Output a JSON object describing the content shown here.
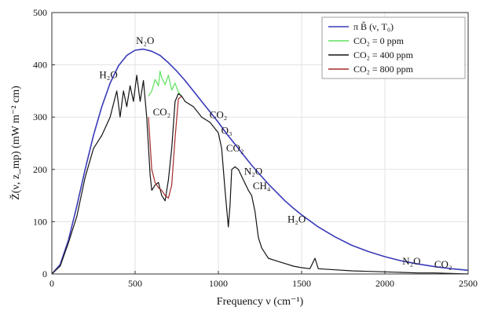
{
  "chart_data": {
    "type": "line",
    "xlabel": "Frequency ν (cm⁻¹)",
    "ylabel": "Ž(ν, z_mp) (mW m⁻² cm)",
    "xlim": [
      0,
      2500
    ],
    "ylim": [
      0,
      500
    ],
    "xticks": [
      "0",
      "500",
      "1000",
      "1500",
      "2000",
      "2500"
    ],
    "yticks": [
      "0",
      "100",
      "200",
      "300",
      "400",
      "500"
    ],
    "grid": true,
    "legend_position": "top-right",
    "legend": [
      "π B̃ (ν, T₀)",
      "CO₂ = 0 ppm",
      "CO₂ = 400 ppm",
      "CO₂ = 800 ppm"
    ],
    "colors": {
      "planck": "#3a3ab8",
      "co2_0": "#5ee05e",
      "co2_400": "#141414",
      "co2_800": "#a52a2a"
    },
    "annotations": [
      {
        "text": "N₂O",
        "x": 560,
        "y": 440
      },
      {
        "text": "H₂O",
        "x": 340,
        "y": 375
      },
      {
        "text": "CO₂",
        "x": 660,
        "y": 303
      },
      {
        "text": "CO₂",
        "x": 1000,
        "y": 298
      },
      {
        "text": "O₃",
        "x": 1050,
        "y": 268
      },
      {
        "text": "CO₂",
        "x": 1100,
        "y": 234
      },
      {
        "text": "N₂O",
        "x": 1210,
        "y": 190
      },
      {
        "text": "CH₄",
        "x": 1260,
        "y": 162
      },
      {
        "text": "H₂O",
        "x": 1470,
        "y": 98
      },
      {
        "text": "N₂O",
        "x": 2160,
        "y": 18
      },
      {
        "text": "CO₂",
        "x": 2350,
        "y": 12
      }
    ],
    "series": [
      {
        "name": "π B̃ (ν, T₀)",
        "x": [
          0,
          50,
          100,
          150,
          200,
          250,
          300,
          350,
          400,
          450,
          500,
          550,
          600,
          650,
          700,
          750,
          800,
          850,
          900,
          950,
          1000,
          1050,
          1100,
          1150,
          1200,
          1250,
          1300,
          1350,
          1400,
          1450,
          1500,
          1600,
          1700,
          1800,
          1900,
          2000,
          2100,
          2200,
          2300,
          2400,
          2500
        ],
        "values": [
          0,
          18,
          65,
          130,
          200,
          265,
          320,
          365,
          398,
          418,
          428,
          430,
          426,
          418,
          404,
          388,
          370,
          350,
          330,
          310,
          290,
          268,
          248,
          228,
          208,
          190,
          172,
          156,
          140,
          126,
          113,
          90,
          71,
          55,
          43,
          33,
          25,
          19,
          14,
          10,
          7
        ]
      },
      {
        "name": "CO₂ = 0 ppm",
        "x": [
          580,
          600,
          620,
          640,
          650,
          660,
          680,
          700,
          720,
          740,
          760,
          780
        ],
        "values": [
          340,
          350,
          372,
          360,
          388,
          375,
          362,
          380,
          352,
          365,
          348,
          340
        ]
      },
      {
        "name": "CO₂ = 400 ppm",
        "x": [
          0,
          50,
          100,
          150,
          200,
          250,
          300,
          350,
          370,
          390,
          410,
          430,
          450,
          470,
          490,
          510,
          530,
          550,
          570,
          590,
          600,
          620,
          640,
          660,
          680,
          700,
          720,
          740,
          760,
          780,
          800,
          850,
          900,
          950,
          1000,
          1020,
          1040,
          1060,
          1070,
          1080,
          1100,
          1120,
          1150,
          1180,
          1200,
          1220,
          1240,
          1260,
          1280,
          1300,
          1350,
          1400,
          1450,
          1500,
          1550,
          1580,
          1600,
          1700,
          1800,
          1900,
          2000,
          2100,
          2200,
          2300,
          2400,
          2500
        ],
        "values": [
          0,
          15,
          60,
          110,
          185,
          240,
          265,
          300,
          325,
          350,
          300,
          350,
          320,
          360,
          330,
          380,
          330,
          370,
          300,
          190,
          160,
          170,
          175,
          150,
          140,
          180,
          240,
          330,
          345,
          340,
          330,
          320,
          300,
          290,
          270,
          240,
          160,
          90,
          130,
          200,
          205,
          200,
          180,
          160,
          150,
          120,
          70,
          50,
          40,
          30,
          25,
          20,
          15,
          12,
          10,
          30,
          10,
          8,
          6,
          5,
          4,
          3,
          2,
          2,
          1,
          0
        ]
      },
      {
        "name": "CO₂ = 800 ppm",
        "x": [
          580,
          600,
          620,
          640,
          660,
          680,
          700,
          720,
          740,
          760,
          780
        ],
        "values": [
          300,
          200,
          175,
          165,
          160,
          150,
          145,
          170,
          260,
          335,
          340
        ]
      }
    ]
  }
}
